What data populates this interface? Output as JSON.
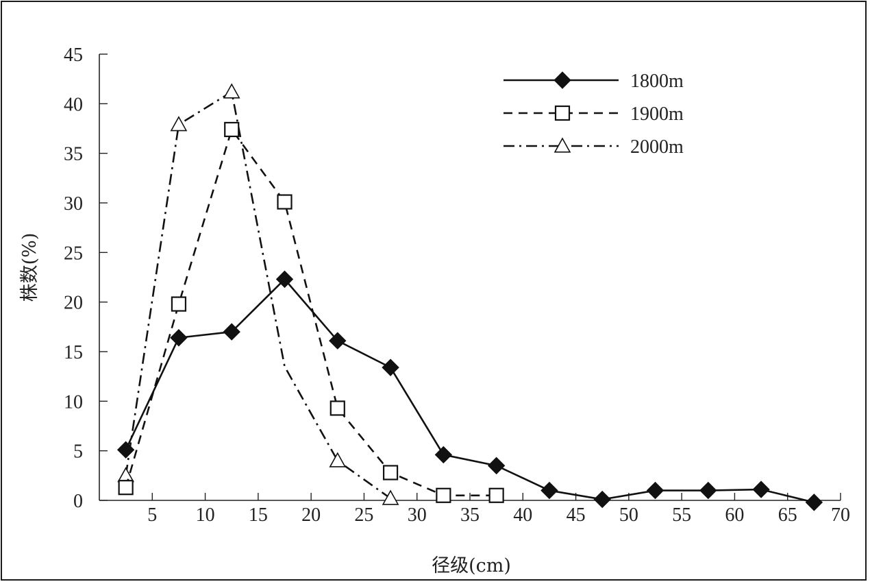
{
  "chart_data": {
    "type": "line",
    "xlabel": "径级(cm)",
    "ylabel": "株数(%)",
    "xlim": [
      0,
      70
    ],
    "ylim": [
      0,
      45
    ],
    "x_ticks": [
      5,
      10,
      15,
      20,
      25,
      30,
      35,
      40,
      45,
      50,
      55,
      60,
      65,
      70
    ],
    "y_ticks": [
      0,
      5,
      10,
      15,
      20,
      25,
      30,
      35,
      40,
      45
    ],
    "grid": false,
    "legend_position": "top-right",
    "series": [
      {
        "name": "1800m",
        "line_style": "solid",
        "marker": "filled-diamond",
        "x": [
          2.5,
          7.5,
          12.5,
          17.5,
          22.5,
          27.5,
          32.5,
          37.5,
          42.5,
          47.5,
          52.5,
          57.5,
          62.5,
          67.5
        ],
        "y": [
          5.1,
          16.4,
          17.0,
          22.3,
          16.1,
          13.4,
          4.6,
          3.5,
          1.0,
          0.1,
          1.0,
          1.0,
          1.1,
          -0.2
        ]
      },
      {
        "name": "1900m",
        "line_style": "dashed",
        "marker": "open-square",
        "x": [
          2.5,
          7.5,
          12.5,
          17.5,
          22.5,
          27.5,
          32.5,
          37.5
        ],
        "y": [
          1.3,
          19.8,
          37.4,
          30.1,
          9.3,
          2.8,
          0.5,
          0.5
        ]
      },
      {
        "name": "2000m",
        "line_style": "dash-dot",
        "marker": "open-triangle",
        "x": [
          2.5,
          7.5,
          12.5,
          17.5,
          22.5,
          27.5
        ],
        "y": [
          2.5,
          37.9,
          41.2,
          13.5,
          4.0,
          0.2
        ],
        "marked_x": [
          2.5,
          7.5,
          12.5,
          22.5,
          27.5
        ]
      }
    ]
  }
}
